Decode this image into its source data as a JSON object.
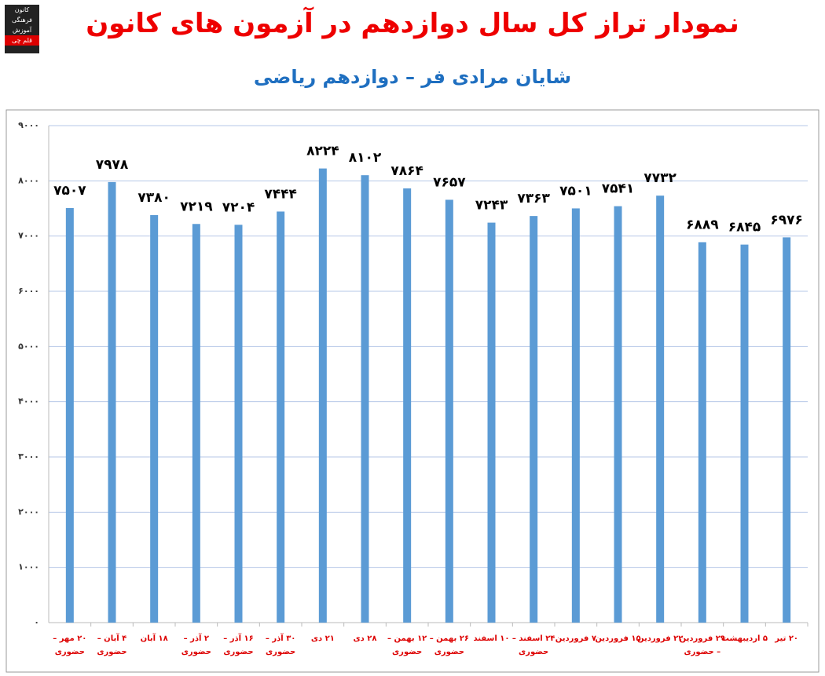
{
  "logo": {
    "lines": [
      "کانون",
      "فرهنگی",
      "آموزش",
      "قلم چی"
    ]
  },
  "chart_data": {
    "type": "bar",
    "title": "نمودار تراز کل سال دوازدهم در آزمون های کانون",
    "subtitle": "شایان مرادی فر – دوازدهم ریاضی",
    "categories": [
      "۲۰ مهر – حضوری",
      "۴ آبان – حضوری",
      "۱۸ آبان",
      "۲ آذر – حضوری",
      "۱۶ آذر – حضوری",
      "۳۰ آذر – حضوری",
      "۲۱ دی",
      "۲۸ دی",
      "۱۲ بهمن – حضوری",
      "۲۶ بهمن – حضوری",
      "۱۰ اسفند",
      "۲۴ اسفند – حضوری",
      "۷ فروردین",
      "۱۵ فروردین",
      "۲۲ فروردین",
      "۲۹ فروردین – حضوری",
      "۵ اردیبهشت",
      "۲۰ تیر"
    ],
    "values": [
      7507,
      7978,
      7380,
      7219,
      7204,
      7444,
      8224,
      8102,
      7864,
      7657,
      7243,
      7363,
      7501,
      7541,
      7732,
      6889,
      6845,
      6976
    ],
    "value_labels": [
      "۷۵۰۷",
      "۷۹۷۸",
      "۷۳۸۰",
      "۷۲۱۹",
      "۷۲۰۴",
      "۷۴۴۴",
      "۸۲۲۴",
      "۸۱۰۲",
      "۷۸۶۴",
      "۷۶۵۷",
      "۷۲۴۳",
      "۷۳۶۳",
      "۷۵۰۱",
      "۷۵۴۱",
      "۷۷۳۲",
      "۶۸۸۹",
      "۶۸۴۵",
      "۶۹۷۶"
    ],
    "color": "#5b9bd5",
    "ylim": [
      0,
      9000
    ],
    "yticks": [
      {
        "value": 0,
        "label": "۰"
      },
      {
        "value": 1000,
        "label": "۱۰۰۰"
      },
      {
        "value": 2000,
        "label": "۲۰۰۰"
      },
      {
        "value": 3000,
        "label": "۳۰۰۰"
      },
      {
        "value": 4000,
        "label": "۴۰۰۰"
      },
      {
        "value": 5000,
        "label": "۵۰۰۰"
      },
      {
        "value": 6000,
        "label": "۶۰۰۰"
      },
      {
        "value": 7000,
        "label": "۷۰۰۰"
      },
      {
        "value": 8000,
        "label": "۸۰۰۰"
      },
      {
        "value": 9000,
        "label": "۹۰۰۰"
      }
    ],
    "grid": true
  }
}
